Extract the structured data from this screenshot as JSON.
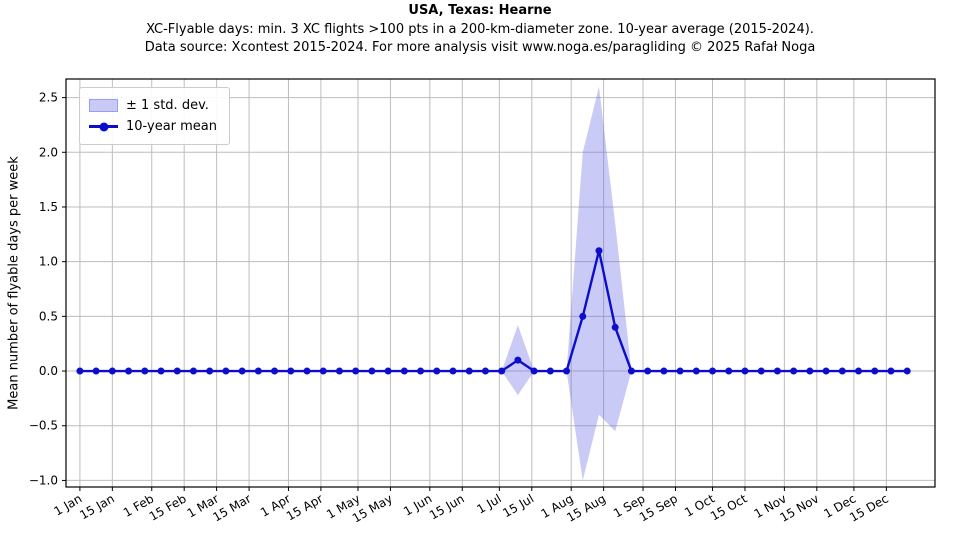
{
  "header": {
    "title": "USA, Texas: Hearne",
    "subtitle1": "XC-Flyable days: min. 3 XC flights >100 pts in a 200-km-diameter zone. 10-year average (2015-2024).",
    "subtitle2": "Data source: Xcontest 2015-2024. For more analysis visit www.noga.es/paragliding © 2025 Rafał Noga"
  },
  "legend": {
    "band_label": "± 1 std. dev.",
    "mean_label": "10-year mean"
  },
  "chart_data": {
    "type": "line",
    "title": "USA, Texas: Hearne",
    "xlabel": "",
    "ylabel": "Mean number of flyable days per week",
    "grid": true,
    "legend_position": "upper left",
    "xlim": [
      -5,
      370
    ],
    "ylim": [
      -1.06,
      2.67
    ],
    "y_ticks": [
      -1.0,
      -0.5,
      0.0,
      0.5,
      1.0,
      1.5,
      2.0,
      2.5
    ],
    "x_ticks": [
      {
        "day": 1,
        "label": "1 Jan"
      },
      {
        "day": 15,
        "label": "15 Jan"
      },
      {
        "day": 32,
        "label": "1 Feb"
      },
      {
        "day": 46,
        "label": "15 Feb"
      },
      {
        "day": 60,
        "label": "1 Mar"
      },
      {
        "day": 74,
        "label": "15 Mar"
      },
      {
        "day": 91,
        "label": "1 Apr"
      },
      {
        "day": 105,
        "label": "15 Apr"
      },
      {
        "day": 121,
        "label": "1 May"
      },
      {
        "day": 135,
        "label": "15 May"
      },
      {
        "day": 152,
        "label": "1 Jun"
      },
      {
        "day": 166,
        "label": "15 Jun"
      },
      {
        "day": 182,
        "label": "1 Jul"
      },
      {
        "day": 196,
        "label": "15 Jul"
      },
      {
        "day": 213,
        "label": "1 Aug"
      },
      {
        "day": 227,
        "label": "15 Aug"
      },
      {
        "day": 244,
        "label": "1 Sep"
      },
      {
        "day": 258,
        "label": "15 Sep"
      },
      {
        "day": 274,
        "label": "1 Oct"
      },
      {
        "day": 288,
        "label": "15 Oct"
      },
      {
        "day": 305,
        "label": "1 Nov"
      },
      {
        "day": 319,
        "label": "15 Nov"
      },
      {
        "day": 335,
        "label": "1 Dec"
      },
      {
        "day": 349,
        "label": "15 Dec"
      }
    ],
    "series": [
      {
        "name": "10-year mean",
        "x_days": [
          1,
          8,
          15,
          22,
          29,
          36,
          43,
          50,
          57,
          64,
          71,
          78,
          85,
          92,
          99,
          106,
          113,
          120,
          127,
          134,
          141,
          148,
          155,
          162,
          169,
          176,
          183,
          190,
          197,
          204,
          211,
          218,
          225,
          232,
          239,
          246,
          253,
          260,
          267,
          274,
          281,
          288,
          295,
          302,
          309,
          316,
          323,
          330,
          337,
          344,
          351,
          358
        ],
        "mean": [
          0,
          0,
          0,
          0,
          0,
          0,
          0,
          0,
          0,
          0,
          0,
          0,
          0,
          0,
          0,
          0,
          0,
          0,
          0,
          0,
          0,
          0,
          0,
          0,
          0,
          0,
          0,
          0.1,
          0,
          0,
          0,
          0.5,
          1.1,
          0.4,
          0,
          0,
          0,
          0,
          0,
          0,
          0,
          0,
          0,
          0,
          0,
          0,
          0,
          0,
          0,
          0,
          0,
          0
        ],
        "std": [
          0,
          0,
          0,
          0,
          0,
          0,
          0,
          0,
          0,
          0,
          0,
          0,
          0,
          0,
          0,
          0,
          0,
          0,
          0,
          0,
          0,
          0,
          0,
          0,
          0,
          0,
          0,
          0.32,
          0,
          0,
          0,
          1.5,
          1.5,
          0.95,
          0,
          0,
          0,
          0,
          0,
          0,
          0,
          0,
          0,
          0,
          0,
          0,
          0,
          0,
          0,
          0,
          0,
          0
        ]
      }
    ],
    "colors": {
      "mean_line": "#0d0dcc",
      "band_fill": "#6666e6",
      "band_opacity": 0.35,
      "grid": "#bdbdbd",
      "axis": "#000000"
    }
  }
}
